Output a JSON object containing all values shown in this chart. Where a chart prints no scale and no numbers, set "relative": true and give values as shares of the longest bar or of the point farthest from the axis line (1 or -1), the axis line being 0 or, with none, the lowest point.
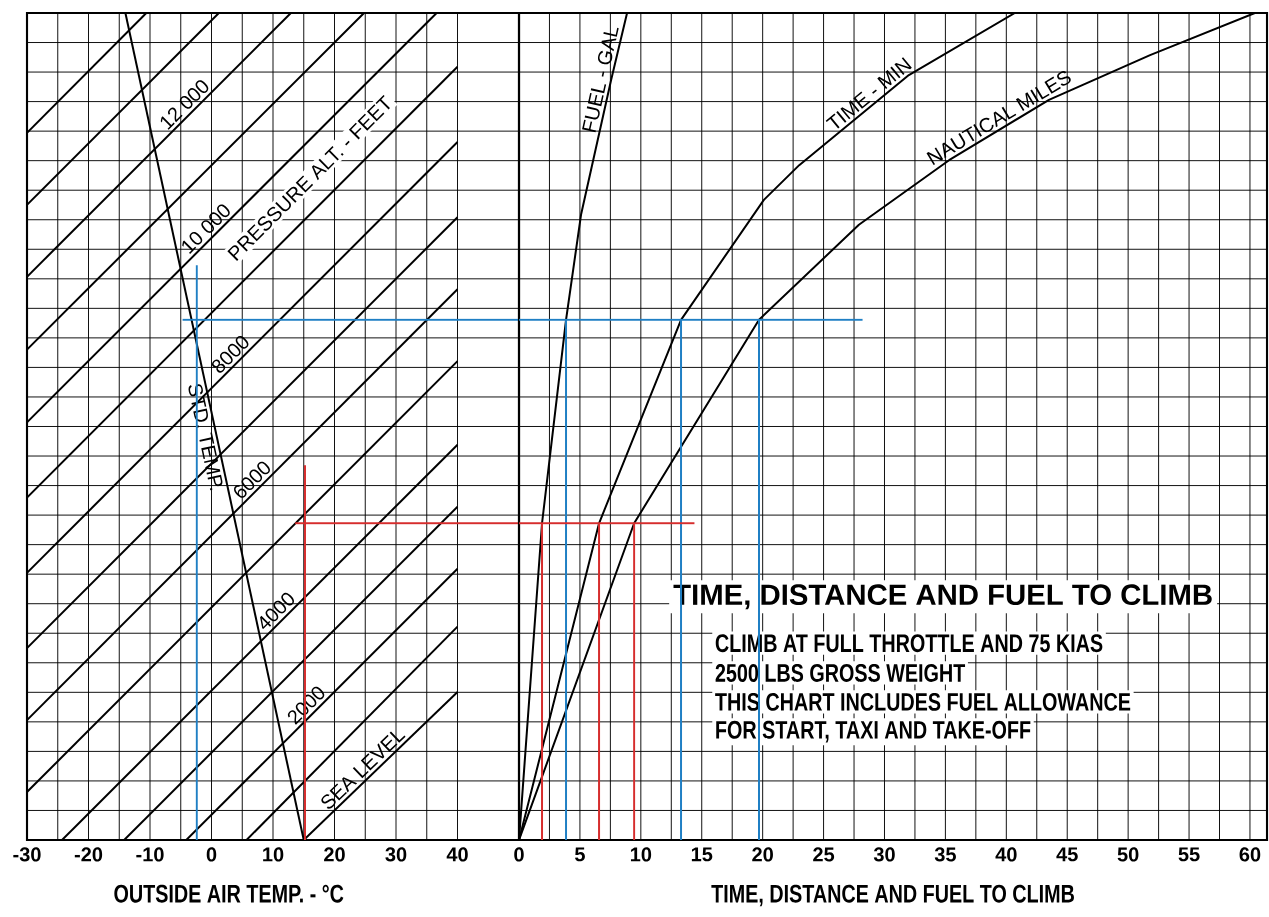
{
  "chart_data": [
    {
      "type": "line",
      "relative": true,
      "xlabel": "OUTSIDE AIR TEMP. - °C",
      "xlim": [
        -30,
        50
      ],
      "xticks": [
        -30,
        -20,
        -10,
        0,
        10,
        20,
        30,
        40
      ],
      "grid": true,
      "annotations": [
        "PRESSURE ALT. - FEET"
      ],
      "series": [
        {
          "name": "SEA LEVEL",
          "color": "#000000",
          "x": [
            15,
            40
          ],
          "values": [
            0,
            0.179
          ]
        },
        {
          "color": "#000000",
          "x": [
            5.7,
            40
          ],
          "values": [
            0,
            0.258
          ]
        },
        {
          "name": "2000",
          "color": "#000000",
          "x": [
            -4.1,
            40
          ],
          "values": [
            0,
            0.328
          ]
        },
        {
          "color": "#000000",
          "x": [
            -14.2,
            40
          ],
          "values": [
            0,
            0.403
          ]
        },
        {
          "name": "4000",
          "color": "#000000",
          "x": [
            -24.3,
            40
          ],
          "values": [
            0,
            0.478
          ]
        },
        {
          "color": "#000000",
          "x": [
            -30,
            40
          ],
          "values": [
            0.058,
            0.579
          ]
        },
        {
          "name": "6000",
          "color": "#000000",
          "x": [
            -30,
            40
          ],
          "values": [
            0.145,
            0.666
          ]
        },
        {
          "color": "#000000",
          "x": [
            -30,
            40
          ],
          "values": [
            0.232,
            0.753
          ]
        },
        {
          "name": "8000",
          "color": "#000000",
          "x": [
            -30,
            40
          ],
          "values": [
            0.323,
            0.844
          ]
        },
        {
          "color": "#000000",
          "x": [
            -30,
            40
          ],
          "values": [
            0.414,
            0.935
          ]
        },
        {
          "name": "10 000",
          "color": "#000000",
          "x": [
            -30,
            36.6
          ],
          "values": [
            0.505,
            1
          ]
        },
        {
          "color": "#000000",
          "x": [
            -30,
            24.8
          ],
          "values": [
            0.593,
            1
          ]
        },
        {
          "name": "12 000",
          "color": "#000000",
          "x": [
            -30,
            12.9
          ],
          "values": [
            0.681,
            1
          ]
        },
        {
          "color": "#000000",
          "x": [
            -30,
            1.2
          ],
          "values": [
            0.768,
            1
          ]
        },
        {
          "color": "#000000",
          "x": [
            -30,
            -10.6
          ],
          "values": [
            0.855,
            1
          ]
        },
        {
          "name": "STD. TEMP.",
          "color": "#000000",
          "x": [
            -14,
            15
          ],
          "values": [
            1,
            0
          ]
        },
        {
          "color": "#1f7fc4",
          "x": [
            -2.4,
            -2.4
          ],
          "values": [
            0,
            0.695
          ]
        },
        {
          "color": "#1f7fc4",
          "x": [
            -4.7,
            50
          ],
          "values": [
            0.629,
            0.629
          ]
        },
        {
          "color": "#d62d2d",
          "x": [
            15.2,
            15.2
          ],
          "values": [
            0,
            0.453
          ]
        },
        {
          "color": "#d62d2d",
          "x": [
            13.6,
            50
          ],
          "values": [
            0.383,
            0.383
          ]
        }
      ]
    },
    {
      "type": "line",
      "relative": true,
      "title": "TIME, DISTANCE AND FUEL TO CLIMB",
      "xlabel": "TIME, DISTANCE AND FUEL TO CLIMB",
      "xlim": [
        0,
        61.4
      ],
      "xticks": [
        0,
        5,
        10,
        15,
        20,
        25,
        30,
        35,
        40,
        45,
        50,
        55,
        60
      ],
      "grid": true,
      "annotations": [
        "CLIMB AT FULL THROTTLE AND 75 KIAS",
        "2500 LBS GROSS WEIGHT",
        "THIS CHART INCLUDES FUEL ALLOWANCE",
        "FOR START, TAXI AND TAKE-OFF"
      ],
      "series": [
        {
          "name": "FUEL - GAL",
          "color": "#000000",
          "x": [
            0,
            1.89,
            3.86,
            5.09,
            7.56,
            8.87
          ],
          "values": [
            0,
            0.383,
            0.629,
            0.756,
            0.919,
            1
          ]
        },
        {
          "name": "TIME - MIN",
          "color": "#000000",
          "x": [
            0,
            6.57,
            13.3,
            20.1,
            23.0,
            32.0,
            40.7
          ],
          "values": [
            0,
            0.383,
            0.629,
            0.774,
            0.816,
            0.925,
            1
          ]
        },
        {
          "name": "NAUTICAL MILES",
          "color": "#000000",
          "x": [
            0,
            9.45,
            19.7,
            27.9,
            35.3,
            43.5,
            51.8,
            60.4
          ],
          "values": [
            0,
            0.383,
            0.629,
            0.744,
            0.822,
            0.895,
            0.949,
            1
          ]
        },
        {
          "color": "#1f7fc4",
          "x": [
            0,
            28.2
          ],
          "values": [
            0.629,
            0.629
          ]
        },
        {
          "color": "#1f7fc4",
          "x": [
            3.86,
            3.86
          ],
          "values": [
            0,
            0.629
          ]
        },
        {
          "color": "#1f7fc4",
          "x": [
            13.3,
            13.3
          ],
          "values": [
            0,
            0.629
          ]
        },
        {
          "color": "#1f7fc4",
          "x": [
            19.7,
            19.7
          ],
          "values": [
            0,
            0.629
          ]
        },
        {
          "color": "#d62d2d",
          "x": [
            0,
            14.4
          ],
          "values": [
            0.383,
            0.383
          ]
        },
        {
          "color": "#d62d2d",
          "x": [
            1.89,
            1.89
          ],
          "values": [
            0,
            0.383
          ]
        },
        {
          "color": "#d62d2d",
          "x": [
            6.57,
            6.57
          ],
          "values": [
            0,
            0.383
          ]
        },
        {
          "color": "#d62d2d",
          "x": [
            9.45,
            9.45
          ],
          "values": [
            0,
            0.383
          ]
        }
      ]
    }
  ]
}
